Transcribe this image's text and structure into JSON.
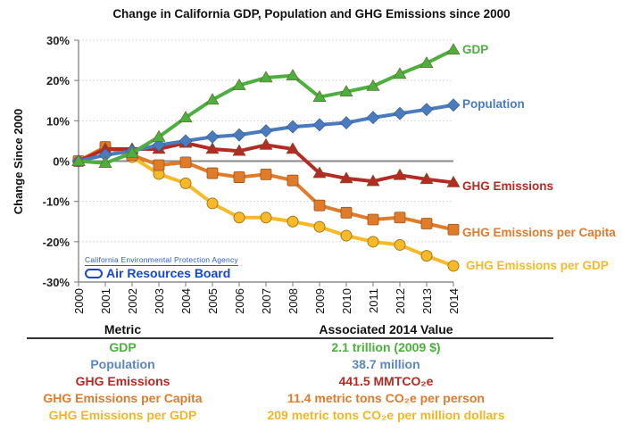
{
  "chart_data": {
    "type": "line",
    "title": "Change in California GDP, Population and GHG Emissions since 2000",
    "xlabel": "",
    "ylabel": "Change Since 2000",
    "x": [
      "2000",
      "2001",
      "2002",
      "2003",
      "2004",
      "2005",
      "2006",
      "2007",
      "2008",
      "2009",
      "2010",
      "2011",
      "2012",
      "2013",
      "2014"
    ],
    "ylim": [
      -30,
      30
    ],
    "yticks": [
      30,
      20,
      10,
      0,
      -10,
      -20,
      -30
    ],
    "ytick_labels": [
      "30%",
      "20%",
      "10%",
      "0%",
      "-10%",
      "-20%",
      "-30%"
    ],
    "grid": "horizontal dotted",
    "legend": "right (inline labels)",
    "series": [
      {
        "name": "GDP",
        "color": "#4caf3e",
        "marker": "triangle",
        "values": [
          0,
          -0.5,
          2,
          6,
          10.8,
          15.2,
          18.8,
          20.7,
          21.2,
          15.9,
          17.2,
          18.6,
          21.6,
          24.3,
          27.6
        ]
      },
      {
        "name": "Population",
        "color": "#4a7bbf",
        "marker": "diamond",
        "values": [
          0,
          1.5,
          2.5,
          4,
          5,
          6,
          6.5,
          7.5,
          8.5,
          9,
          9.5,
          10.8,
          11.8,
          12.8,
          13.9
        ]
      },
      {
        "name": "GHG Emissions",
        "color": "#b52a22",
        "marker": "triangle",
        "values": [
          0,
          3,
          3,
          3,
          4.5,
          3,
          2.5,
          4,
          3,
          -3,
          -4.3,
          -5,
          -3.5,
          -4.5,
          -5.3
        ]
      },
      {
        "name": "GHG Emissions per Capita",
        "color": "#e07b2a",
        "marker": "square",
        "values": [
          0,
          3.5,
          1.5,
          -1,
          -0.3,
          -3,
          -4,
          -3.3,
          -4.8,
          -11,
          -12.8,
          -14.5,
          -14,
          -15.5,
          -17
        ]
      },
      {
        "name": "GHG Emissions per GDP",
        "color": "#f7b928",
        "marker": "circle",
        "values": [
          0,
          3.5,
          1,
          -3.2,
          -5.5,
          -10.5,
          -14,
          -14,
          -15,
          -16.3,
          -18.5,
          -20,
          -20.8,
          -23.5,
          -26
        ]
      }
    ],
    "annotations": {
      "agency": "California Environmental Protection Agency",
      "board": "Air Resources Board"
    }
  },
  "table": {
    "headers": [
      "Metric",
      "Associated 2014 Value"
    ],
    "rows": [
      {
        "metric": "GDP",
        "value": "2.1 trillion (2009 $)",
        "color": "#4caf3e"
      },
      {
        "metric": "Population",
        "value": "38.7 million",
        "color": "#5b86c5"
      },
      {
        "metric": "GHG Emissions",
        "value": "441.5 MMTCO₂e",
        "color": "#b52a22"
      },
      {
        "metric": "GHG Emissions per Capita",
        "value": "11.4 metric tons CO₂e per person",
        "color": "#e07b2a"
      },
      {
        "metric": "GHG Emissions per GDP",
        "value": "209 metric tons CO₂e per million dollars",
        "color": "#f2b52a"
      }
    ]
  }
}
